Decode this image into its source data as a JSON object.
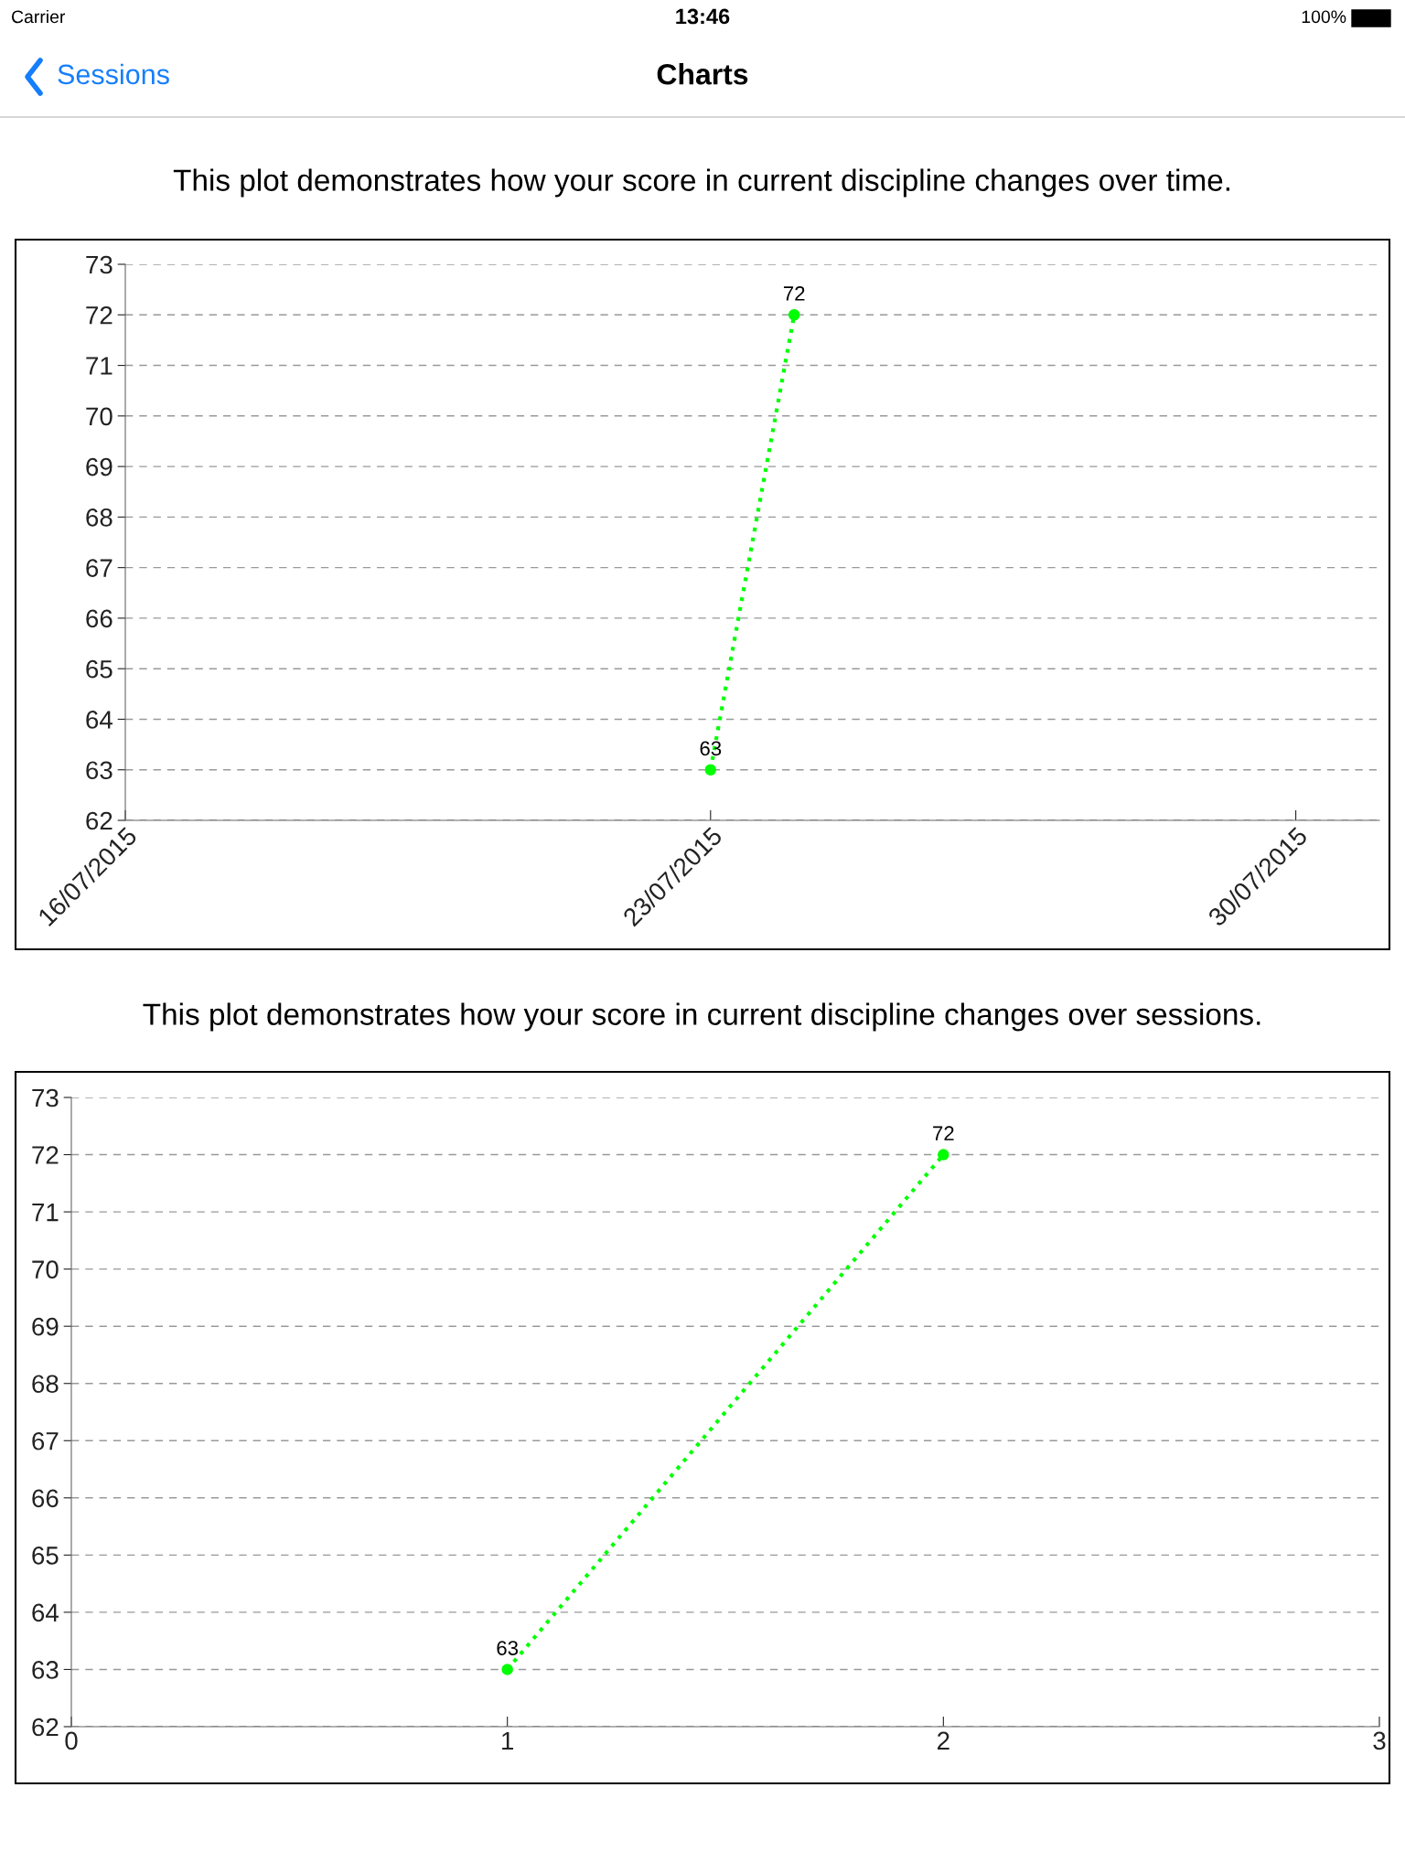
{
  "chart_data": [
    {
      "type": "line",
      "title": "This plot demonstrates how your score in current discipline changes over time.",
      "annotations": [
        "Carrier",
        "13:46",
        "100%",
        "Sessions",
        "Charts"
      ],
      "series": [
        {
          "color": "#00ff00",
          "x": [
            "2015-07-23",
            "2015-07-24"
          ],
          "values": [
            63,
            72
          ]
        }
      ],
      "xlim": [
        "2015-07-16",
        "2015-07-31"
      ],
      "xticks": [
        {
          "value": "2015-07-16",
          "label": "16/07/2015"
        },
        {
          "value": "2015-07-23",
          "label": "23/07/2015"
        },
        {
          "value": "2015-07-30",
          "label": "30/07/2015"
        }
      ],
      "ylim": [
        62,
        73
      ],
      "yticks": [
        62,
        63,
        64,
        65,
        66,
        67,
        68,
        69,
        70,
        71,
        72,
        73
      ],
      "grid": "y",
      "marker": "circle",
      "line_style": "dotted",
      "data_labels": true
    },
    {
      "type": "line",
      "title": "This plot demonstrates how your score in current discipline changes over sessions.",
      "series": [
        {
          "color": "#00ff00",
          "x": [
            1,
            2
          ],
          "values": [
            63,
            72
          ]
        }
      ],
      "xlim": [
        0,
        3
      ],
      "xticks": [
        0,
        1,
        2,
        3
      ],
      "ylim": [
        62,
        73
      ],
      "yticks": [
        62,
        63,
        64,
        65,
        66,
        67,
        68,
        69,
        70,
        71,
        72,
        73
      ],
      "grid": "y",
      "marker": "circle",
      "line_style": "dotted",
      "data_labels": true
    }
  ]
}
